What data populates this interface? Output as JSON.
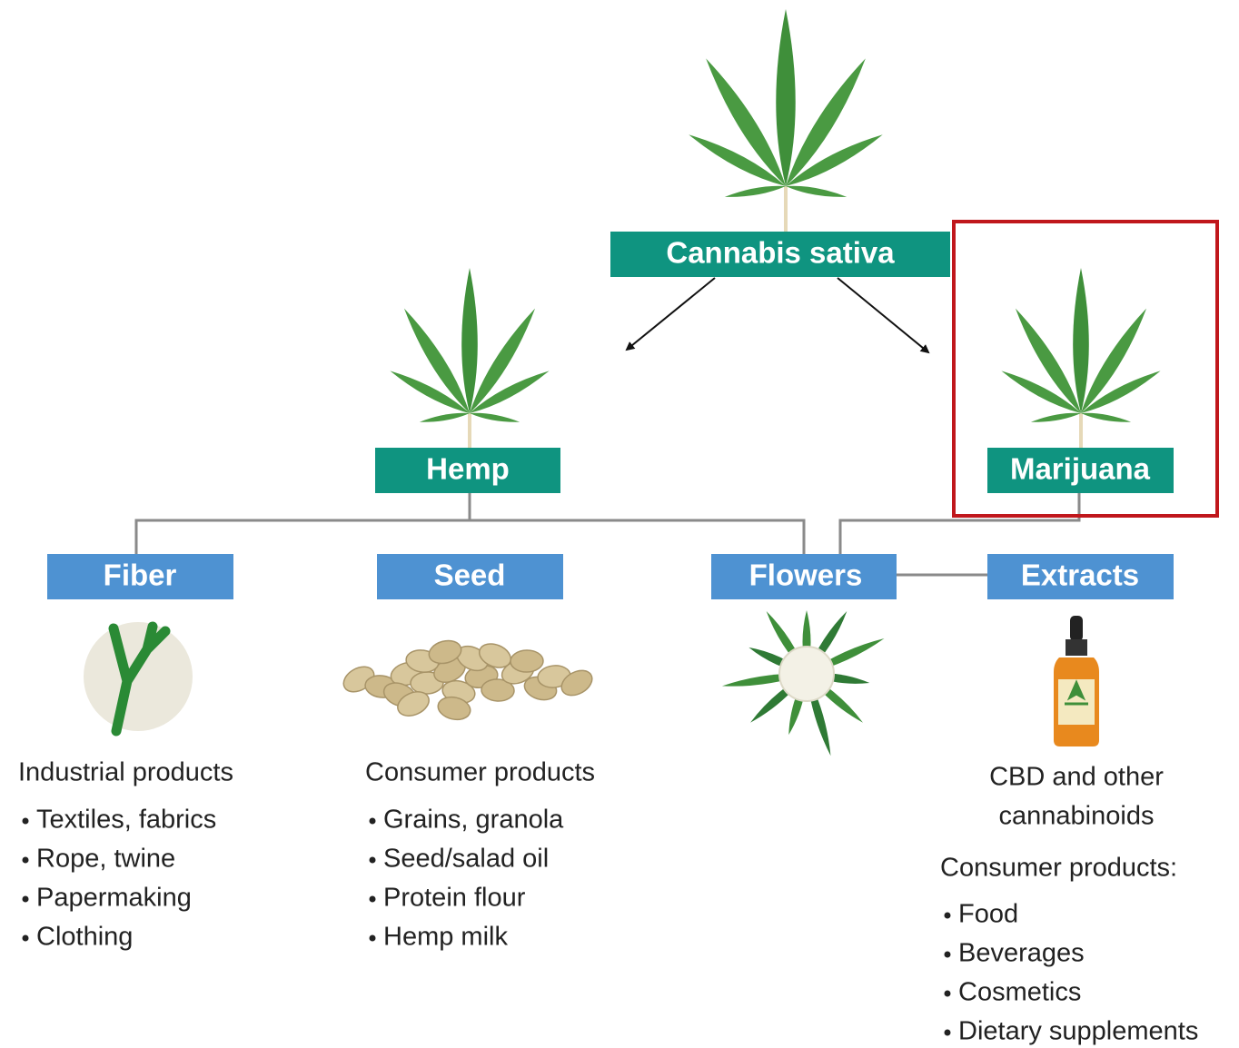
{
  "root": {
    "label": "Cannabis sativa"
  },
  "branches": [
    {
      "label": "Hemp"
    },
    {
      "label": "Marijuana"
    }
  ],
  "uses": [
    {
      "label": "Fiber",
      "heading": "Industrial products",
      "items": [
        "Textiles, fabrics",
        "Rope, twine",
        "Papermaking",
        "Clothing"
      ]
    },
    {
      "label": "Seed",
      "heading": "Consumer products",
      "items": [
        "Grains, granola",
        "Seed/salad oil",
        "Protein flour",
        "Hemp milk"
      ]
    },
    {
      "label": "Flowers"
    },
    {
      "label": "Extracts",
      "product_lines": [
        "CBD and other",
        "cannabinoids"
      ],
      "heading": "Consumer products:",
      "items": [
        "Food",
        "Beverages",
        "Cosmetics",
        "Dietary supplements"
      ]
    }
  ]
}
